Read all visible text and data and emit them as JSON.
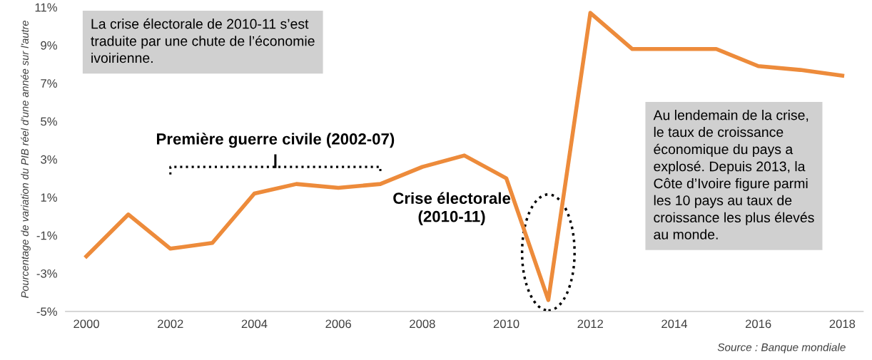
{
  "chart_data": {
    "type": "line",
    "ylabel": "Pourcentage de variation du PIB réel d'une année sur l'autre",
    "x": [
      2000,
      2001,
      2002,
      2003,
      2004,
      2005,
      2006,
      2007,
      2008,
      2009,
      2010,
      2011,
      2012,
      2013,
      2014,
      2015,
      2016,
      2017,
      2018
    ],
    "series": [
      {
        "color": "#ed8b3b",
        "values": [
          -2.1,
          0.1,
          -1.7,
          -1.4,
          1.2,
          1.7,
          1.5,
          1.7,
          2.6,
          3.2,
          2.0,
          -4.4,
          10.7,
          8.8,
          8.8,
          8.8,
          7.9,
          7.7,
          7.4
        ]
      }
    ],
    "xlim": [
      1999.5,
      2018.5
    ],
    "xticks": [
      2000,
      2002,
      2004,
      2006,
      2008,
      2010,
      2012,
      2014,
      2016,
      2018
    ],
    "ylim": [
      -5,
      11
    ],
    "yticks": [
      {
        "value": -5,
        "label": "-5%"
      },
      {
        "value": -3,
        "label": "-3%"
      },
      {
        "value": -1,
        "label": "-1%"
      },
      {
        "value": 1,
        "label": "1%"
      },
      {
        "value": 3,
        "label": "3%"
      },
      {
        "value": 5,
        "label": "5%"
      },
      {
        "value": 7,
        "label": "7%"
      },
      {
        "value": 9,
        "label": "9%"
      },
      {
        "value": 11,
        "label": "11%"
      }
    ],
    "grid": false,
    "marker": "none",
    "line_style": "solid",
    "annotations": [
      "La crise électorale de 2010-11 s’est\ntraduite par une chute de l’économie\nivoirienne.",
      "Au lendemain de la crise,\nle taux de croissance\néconomique du pays a\nexplosé. Depuis 2013, la\nCôte d’Ivoire figure parmi\nles 10 pays au taux de\ncroissance les plus élevés\nau monde.",
      "Première guerre civile (2002-07)",
      "Crise électorale\n(2010-11)",
      "Source : Banque mondiale"
    ]
  }
}
